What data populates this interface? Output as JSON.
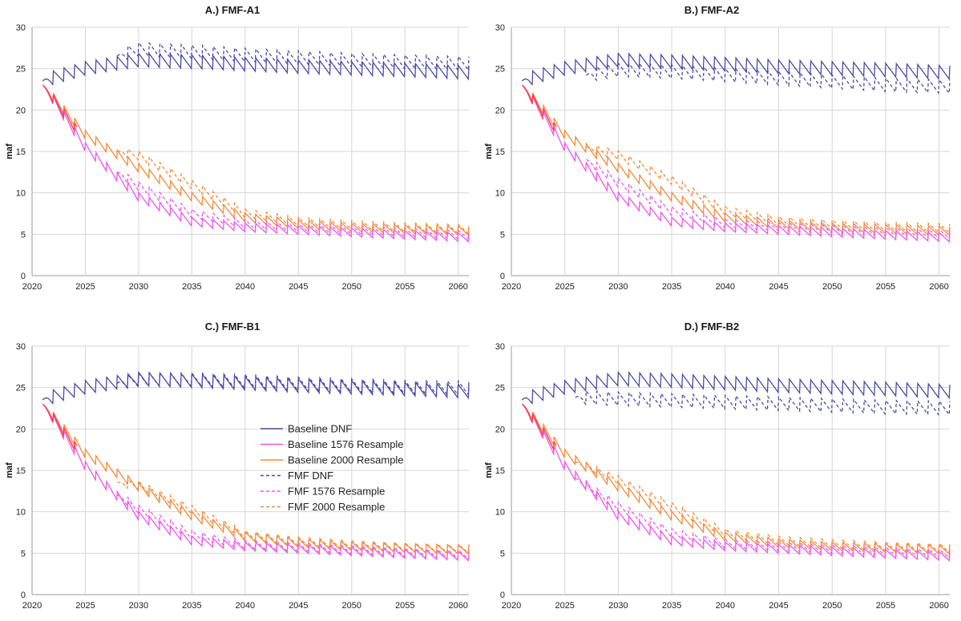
{
  "chart_data": [
    {
      "type": "line",
      "title": "A.) FMF-A1",
      "ylabel": "maf",
      "xlim": [
        2020,
        2061
      ],
      "ylim": [
        0,
        30
      ],
      "xticks": [
        2020,
        2025,
        2030,
        2035,
        2040,
        2045,
        2050,
        2055,
        2060
      ],
      "yticks": [
        0,
        5,
        10,
        15,
        20,
        25,
        30
      ],
      "grid": true,
      "series": [
        {
          "name": "Baseline DNF",
          "x": [
            2021,
            2025,
            2030,
            2035,
            2040,
            2045,
            2050,
            2055,
            2061
          ],
          "y": [
            23.5,
            25.0,
            26.0,
            25.8,
            25.5,
            25.2,
            25.0,
            24.8,
            24.5
          ]
        },
        {
          "name": "Baseline 1576 Resample",
          "x": [
            2021,
            2025,
            2030,
            2035,
            2040,
            2045,
            2050,
            2055,
            2061
          ],
          "y": [
            23.0,
            15.5,
            9.5,
            6.5,
            5.8,
            5.5,
            5.2,
            4.9,
            4.6
          ]
        },
        {
          "name": "Baseline 2000 Resample",
          "x": [
            2021,
            2025,
            2030,
            2035,
            2040,
            2045,
            2050,
            2055,
            2061
          ],
          "y": [
            23.0,
            17.0,
            13.0,
            9.5,
            7.0,
            6.2,
            5.8,
            5.6,
            5.4
          ]
        },
        {
          "name": "FMF DNF",
          "x": [
            2028,
            2030,
            2035,
            2040,
            2045,
            2050,
            2055,
            2061
          ],
          "y": [
            26.5,
            27.3,
            27.0,
            26.6,
            26.3,
            26.0,
            25.8,
            25.6
          ]
        },
        {
          "name": "FMF 1576 Resample",
          "x": [
            2028,
            2030,
            2035,
            2040,
            2045,
            2050,
            2055,
            2061
          ],
          "y": [
            12.5,
            10.8,
            7.5,
            6.2,
            5.8,
            5.5,
            5.2,
            4.9
          ]
        },
        {
          "name": "FMF 2000 Resample",
          "x": [
            2028,
            2030,
            2035,
            2040,
            2045,
            2050,
            2055,
            2061
          ],
          "y": [
            15.0,
            14.5,
            11.0,
            7.5,
            6.5,
            6.1,
            5.8,
            5.6
          ]
        }
      ]
    },
    {
      "type": "line",
      "title": "B.) FMF-A2",
      "ylabel": "maf",
      "xlim": [
        2020,
        2061
      ],
      "ylim": [
        0,
        30
      ],
      "xticks": [
        2020,
        2025,
        2030,
        2035,
        2040,
        2045,
        2050,
        2055,
        2060
      ],
      "yticks": [
        0,
        5,
        10,
        15,
        20,
        25,
        30
      ],
      "grid": true,
      "series": [
        {
          "name": "Baseline DNF",
          "x": [
            2021,
            2025,
            2030,
            2035,
            2040,
            2045,
            2050,
            2055,
            2061
          ],
          "y": [
            23.5,
            25.0,
            26.0,
            25.8,
            25.5,
            25.2,
            25.0,
            24.8,
            24.5
          ]
        },
        {
          "name": "Baseline 1576 Resample",
          "x": [
            2021,
            2025,
            2030,
            2035,
            2040,
            2045,
            2050,
            2055,
            2061
          ],
          "y": [
            23.0,
            15.5,
            9.5,
            6.5,
            5.8,
            5.5,
            5.2,
            4.9,
            4.6
          ]
        },
        {
          "name": "Baseline 2000 Resample",
          "x": [
            2021,
            2025,
            2030,
            2035,
            2040,
            2045,
            2050,
            2055,
            2061
          ],
          "y": [
            23.0,
            17.0,
            13.0,
            9.5,
            7.0,
            6.2,
            5.8,
            5.6,
            5.4
          ]
        },
        {
          "name": "FMF DNF",
          "x": [
            2027,
            2030,
            2035,
            2040,
            2045,
            2050,
            2055,
            2061
          ],
          "y": [
            24.2,
            24.8,
            24.6,
            24.2,
            23.8,
            23.4,
            23.0,
            22.8
          ]
        },
        {
          "name": "FMF 1576 Resample",
          "x": [
            2027,
            2030,
            2035,
            2040,
            2045,
            2050,
            2055,
            2061
          ],
          "y": [
            14.0,
            11.2,
            7.8,
            6.3,
            5.9,
            5.6,
            5.3,
            5.0
          ]
        },
        {
          "name": "FMF 2000 Resample",
          "x": [
            2027,
            2030,
            2035,
            2040,
            2045,
            2050,
            2055,
            2061
          ],
          "y": [
            15.5,
            14.5,
            11.5,
            7.8,
            6.6,
            6.2,
            5.9,
            5.7
          ]
        }
      ]
    },
    {
      "type": "line",
      "title": "C.) FMF-B1",
      "ylabel": "maf",
      "xlim": [
        2020,
        2061
      ],
      "ylim": [
        0,
        30
      ],
      "xticks": [
        2020,
        2025,
        2030,
        2035,
        2040,
        2045,
        2050,
        2055,
        2060
      ],
      "yticks": [
        0,
        5,
        10,
        15,
        20,
        25,
        30
      ],
      "grid": true,
      "legend": "center",
      "series": [
        {
          "name": "Baseline DNF",
          "x": [
            2021,
            2025,
            2030,
            2035,
            2040,
            2045,
            2050,
            2055,
            2061
          ],
          "y": [
            23.5,
            25.0,
            26.0,
            25.8,
            25.5,
            25.2,
            25.0,
            24.8,
            24.5
          ]
        },
        {
          "name": "Baseline 1576 Resample",
          "x": [
            2021,
            2025,
            2030,
            2035,
            2040,
            2045,
            2050,
            2055,
            2061
          ],
          "y": [
            23.0,
            15.5,
            9.5,
            6.5,
            5.8,
            5.5,
            5.2,
            4.9,
            4.6
          ]
        },
        {
          "name": "Baseline 2000 Resample",
          "x": [
            2021,
            2025,
            2030,
            2035,
            2040,
            2045,
            2050,
            2055,
            2061
          ],
          "y": [
            23.0,
            17.0,
            13.0,
            9.5,
            7.0,
            6.2,
            5.8,
            5.6,
            5.4
          ]
        },
        {
          "name": "FMF DNF",
          "x": [
            2028,
            2030,
            2035,
            2040,
            2045,
            2050,
            2055,
            2061
          ],
          "y": [
            25.5,
            25.9,
            25.9,
            25.7,
            25.4,
            25.2,
            25.0,
            24.9
          ]
        },
        {
          "name": "FMF 1576 Resample",
          "x": [
            2028,
            2030,
            2035,
            2040,
            2045,
            2050,
            2055,
            2061
          ],
          "y": [
            12.0,
            10.3,
            7.2,
            6.0,
            5.7,
            5.4,
            5.1,
            4.8
          ]
        },
        {
          "name": "FMF 2000 Resample",
          "x": [
            2028,
            2030,
            2035,
            2040,
            2045,
            2050,
            2055,
            2061
          ],
          "y": [
            13.5,
            13.2,
            10.2,
            7.2,
            6.4,
            6.0,
            5.7,
            5.5
          ]
        }
      ]
    },
    {
      "type": "line",
      "title": "D.) FMF-B2",
      "ylabel": "maf",
      "xlim": [
        2020,
        2061
      ],
      "ylim": [
        0,
        30
      ],
      "xticks": [
        2020,
        2025,
        2030,
        2035,
        2040,
        2045,
        2050,
        2055,
        2060
      ],
      "yticks": [
        0,
        5,
        10,
        15,
        20,
        25,
        30
      ],
      "grid": true,
      "series": [
        {
          "name": "Baseline DNF",
          "x": [
            2021,
            2025,
            2030,
            2035,
            2040,
            2045,
            2050,
            2055,
            2061
          ],
          "y": [
            23.5,
            25.0,
            26.0,
            25.8,
            25.5,
            25.2,
            25.0,
            24.8,
            24.5
          ]
        },
        {
          "name": "Baseline 1576 Resample",
          "x": [
            2021,
            2025,
            2030,
            2035,
            2040,
            2045,
            2050,
            2055,
            2061
          ],
          "y": [
            23.0,
            15.5,
            9.5,
            6.5,
            5.8,
            5.5,
            5.2,
            4.9,
            4.6
          ]
        },
        {
          "name": "Baseline 2000 Resample",
          "x": [
            2021,
            2025,
            2030,
            2035,
            2040,
            2045,
            2050,
            2055,
            2061
          ],
          "y": [
            23.0,
            17.0,
            13.0,
            9.5,
            7.0,
            6.2,
            5.8,
            5.6,
            5.4
          ]
        },
        {
          "name": "FMF DNF",
          "x": [
            2026,
            2030,
            2035,
            2040,
            2045,
            2050,
            2055,
            2061
          ],
          "y": [
            23.8,
            23.6,
            23.4,
            23.2,
            23.0,
            22.8,
            22.6,
            22.5
          ]
        },
        {
          "name": "FMF 1576 Resample",
          "x": [
            2026,
            2030,
            2035,
            2040,
            2045,
            2050,
            2055,
            2061
          ],
          "y": [
            14.0,
            10.6,
            7.4,
            6.1,
            5.8,
            5.5,
            5.2,
            4.9
          ]
        },
        {
          "name": "FMF 2000 Resample",
          "x": [
            2026,
            2030,
            2035,
            2040,
            2045,
            2050,
            2055,
            2061
          ],
          "y": [
            16.0,
            13.8,
            10.6,
            7.4,
            6.5,
            6.1,
            5.8,
            5.6
          ]
        }
      ]
    }
  ],
  "series_colors": {
    "Baseline DNF": "#4b4ba6",
    "Baseline 1576 Resample": "#ee55ee",
    "Baseline 2000 Resample": "#f28a3a",
    "FMF DNF": "#4b4ba6",
    "FMF 1576 Resample": "#ee55ee",
    "FMF 2000 Resample": "#f28a3a"
  },
  "overlap_color": "#ff3b4f",
  "dashed_series": [
    "FMF DNF",
    "FMF 1576 Resample",
    "FMF 2000 Resample"
  ],
  "legend_labels": [
    "Baseline DNF",
    "Baseline 1576 Resample",
    "Baseline 2000 Resample",
    "FMF DNF",
    "FMF 1576 Resample",
    "FMF 2000 Resample"
  ]
}
